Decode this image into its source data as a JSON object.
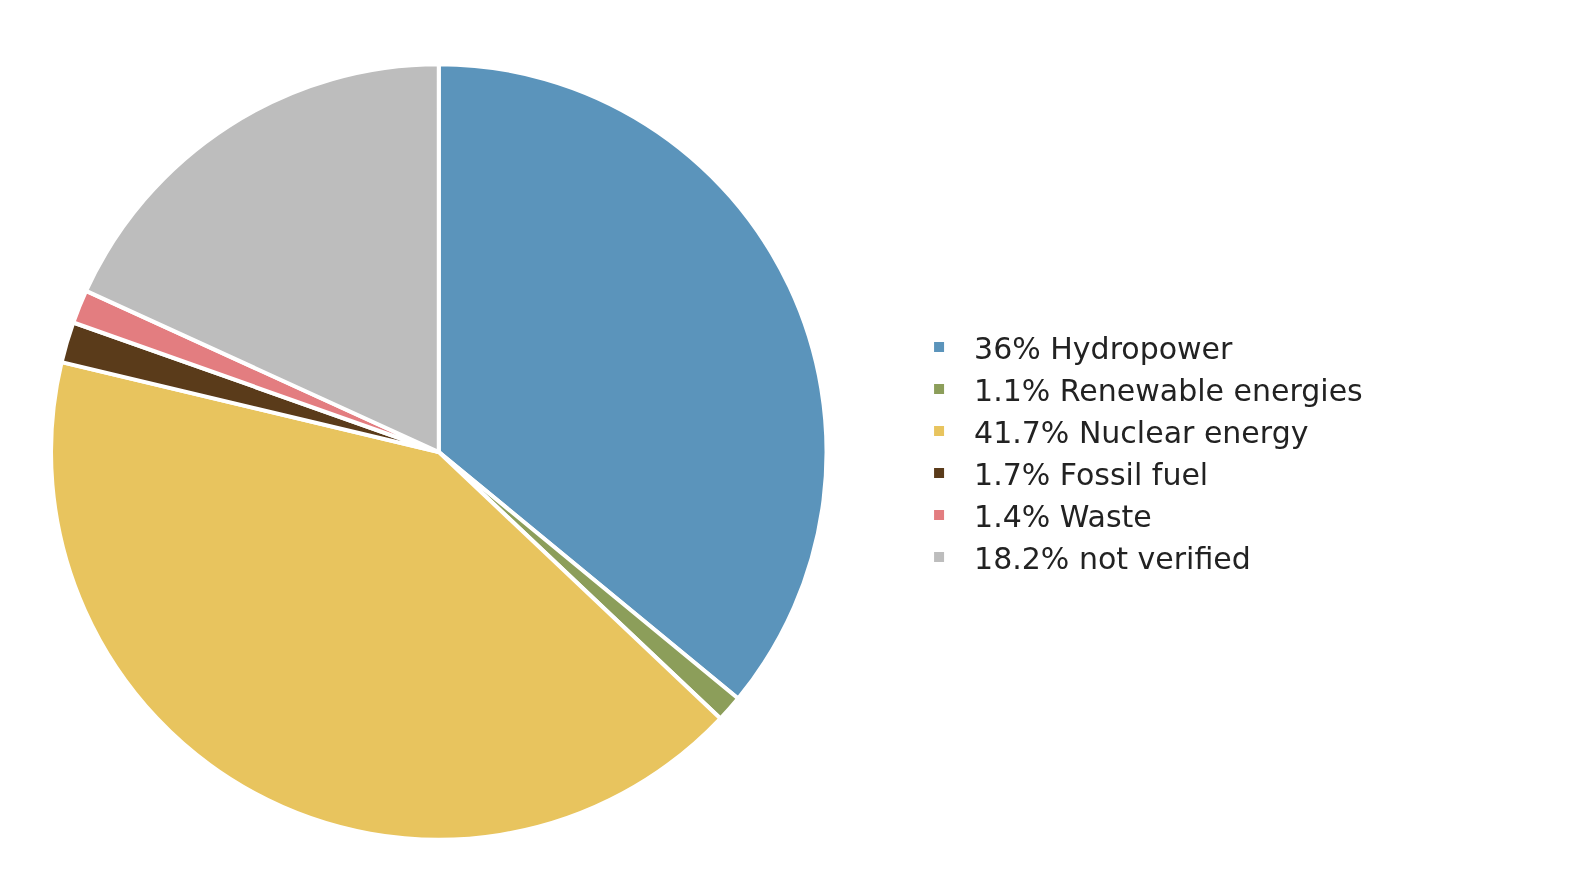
{
  "chart_data": {
    "type": "pie",
    "categories": [
      "36% Hydropower",
      "1.1% Renewable energies",
      "41.7% Nuclear energy",
      "1.7% Fossil fuel",
      "1.4% Waste",
      "18.2% not verified"
    ],
    "values": [
      36,
      1.1,
      41.7,
      1.7,
      1.4,
      18.2
    ],
    "colors": [
      "#5b94bb",
      "#8c9e5a",
      "#e8c45e",
      "#5a3b1a",
      "#e37d80",
      "#bdbdbd"
    ],
    "legend": "right"
  }
}
